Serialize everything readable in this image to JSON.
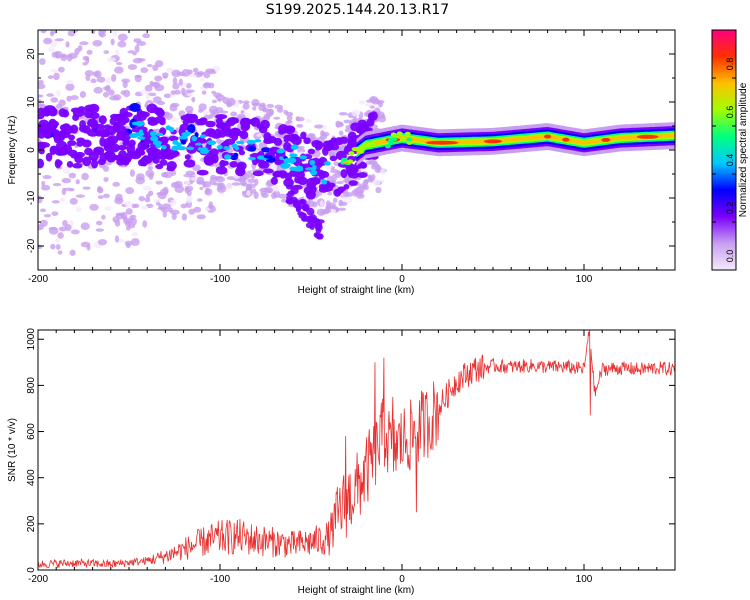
{
  "title": "S199.2025.144.20.13.R17",
  "chart_data": [
    {
      "type": "heatmap",
      "name": "spectrogram",
      "xlabel": "Height of straight line (km)",
      "ylabel": "Frequency (Hz)",
      "xlim": [
        -200,
        150
      ],
      "ylim": [
        -25,
        25
      ],
      "xticks": [
        -200,
        -100,
        0,
        100
      ],
      "yticks": [
        -20,
        -10,
        0,
        10,
        20
      ],
      "colorbar": {
        "label": "Normalized spectral amplitude",
        "range": [
          0,
          1
        ],
        "ticks": [
          "0.0",
          "0.2",
          "0.4",
          "0.6",
          "0.8"
        ],
        "colors": [
          "#f4eafc",
          "#c89ef0",
          "#7a00ff",
          "#0000ff",
          "#00c8ff",
          "#00ff80",
          "#a0ff00",
          "#ffc000",
          "#ff3000",
          "#ff0080"
        ]
      },
      "ridge": [
        {
          "x": -190,
          "f": 2.0
        },
        {
          "x": -160,
          "f": 3.5
        },
        {
          "x": -140,
          "f": 3.0
        },
        {
          "x": -120,
          "f": 1.5
        },
        {
          "x": -100,
          "f": 1.0
        },
        {
          "x": -80,
          "f": 0.5
        },
        {
          "x": -60,
          "f": -1.5
        },
        {
          "x": -45,
          "f": -5.0
        },
        {
          "x": -40,
          "f": -4.0
        },
        {
          "x": -30,
          "f": -2.0
        },
        {
          "x": -20,
          "f": 1.0
        },
        {
          "x": 0,
          "f": 2.5
        },
        {
          "x": 20,
          "f": 1.5
        },
        {
          "x": 50,
          "f": 1.8
        },
        {
          "x": 80,
          "f": 2.8
        },
        {
          "x": 100,
          "f": 1.5
        },
        {
          "x": 120,
          "f": 2.5
        },
        {
          "x": 150,
          "f": 3.0
        }
      ]
    },
    {
      "type": "line",
      "name": "snr",
      "xlabel": "Height of straight line (km)",
      "ylabel": "SNR (10 * v/v)",
      "xlim": [
        -200,
        150
      ],
      "ylim": [
        0,
        1040
      ],
      "xticks": [
        -200,
        -100,
        0,
        100
      ],
      "yticks": [
        0,
        200,
        400,
        600,
        800,
        1000
      ],
      "color": "#e83030",
      "x": [
        -200,
        -180,
        -160,
        -140,
        -130,
        -120,
        -110,
        -100,
        -90,
        -80,
        -70,
        -60,
        -50,
        -40,
        -35,
        -30,
        -25,
        -20,
        -15,
        -10,
        -5,
        0,
        5,
        10,
        15,
        20,
        25,
        30,
        40,
        50,
        60,
        70,
        80,
        90,
        100,
        103,
        106,
        110,
        120,
        130,
        140,
        150
      ],
      "y": [
        25,
        30,
        25,
        40,
        60,
        90,
        120,
        140,
        145,
        130,
        120,
        110,
        120,
        140,
        250,
        300,
        350,
        420,
        500,
        600,
        520,
        560,
        580,
        620,
        650,
        700,
        760,
        820,
        870,
        885,
        880,
        885,
        880,
        880,
        870,
        1040,
        760,
        870,
        875,
        870,
        875,
        870
      ],
      "spikes": [
        {
          "x": -31,
          "y": 580
        },
        {
          "x": -15,
          "y": 900
        },
        {
          "x": -10,
          "y": 920
        },
        {
          "x": -5,
          "y": 750
        },
        {
          "x": 8,
          "y": 250
        },
        {
          "x": 103,
          "y": 1040
        },
        {
          "x": 103.5,
          "y": 670
        }
      ]
    }
  ]
}
